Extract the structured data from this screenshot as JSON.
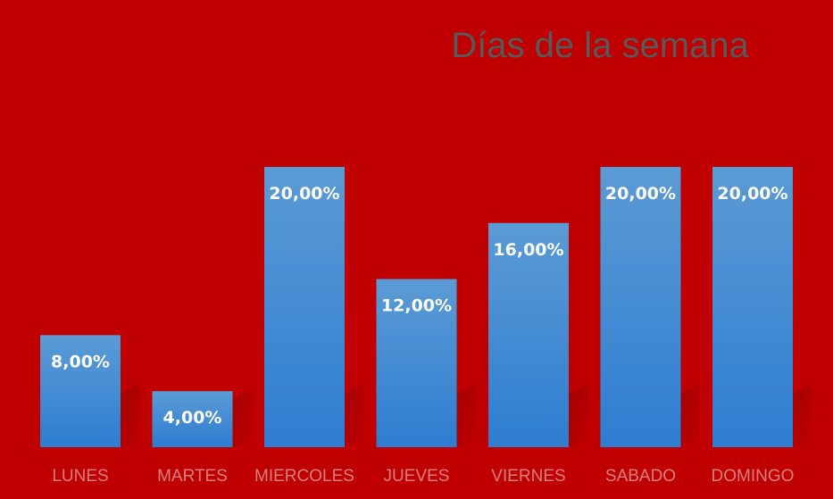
{
  "chart_data": {
    "type": "bar",
    "title": "Días de la semana",
    "categories": [
      "LUNES",
      "MARTES",
      "MIERCOLES",
      "JUEVES",
      "VIERNES",
      "SABADO",
      "DOMINGO"
    ],
    "values": [
      8.0,
      4.0,
      20.0,
      12.0,
      16.0,
      20.0,
      20.0
    ],
    "data_labels": [
      "8,00%",
      "4,00%",
      "20,00%",
      "12,00%",
      "16,00%",
      "20,00%",
      "20,00%"
    ],
    "value_unit": "%",
    "ylim": [
      0,
      20
    ],
    "grid": false,
    "legend": false,
    "colors": {
      "background": "#C00000",
      "bar_top": "#5B9BD5",
      "bar_bottom": "#2E7DD1",
      "title": "#595959",
      "tick_label": "#D9807F",
      "data_label": "#FFFFFF"
    }
  }
}
